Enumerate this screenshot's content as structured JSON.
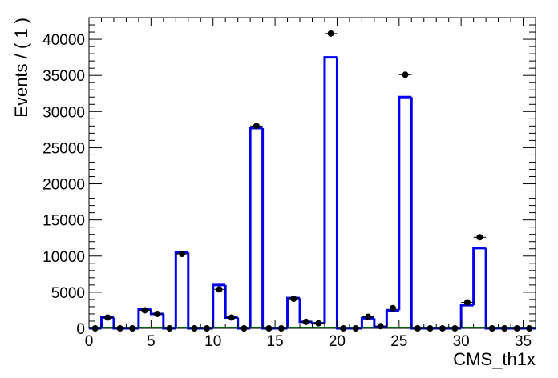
{
  "chart_data": {
    "type": "histogram",
    "xlabel": "CMS_th1x",
    "ylabel": "Events / ( 1 )",
    "xlim": [
      0,
      36
    ],
    "ylim": [
      0,
      43000
    ],
    "x_ticks": [
      0,
      5,
      10,
      15,
      20,
      25,
      30,
      35
    ],
    "y_ticks": [
      0,
      5000,
      10000,
      15000,
      20000,
      25000,
      30000,
      35000,
      40000
    ],
    "bin_width": 1,
    "model_line_color": "#0000ee",
    "background_line_color": "#006400",
    "data_point_color": "#000000",
    "model_values": [
      0,
      1500,
      0,
      0,
      2700,
      2000,
      0,
      10500,
      0,
      0,
      6000,
      1500,
      0,
      27700,
      0,
      0,
      4200,
      900,
      700,
      37500,
      0,
      0,
      1400,
      200,
      2500,
      32000,
      0,
      0,
      0,
      0,
      3200,
      11100,
      0,
      0,
      0,
      0
    ],
    "data_values": [
      0,
      1500,
      0,
      0,
      2500,
      2000,
      0,
      10300,
      0,
      0,
      5400,
      1500,
      0,
      28000,
      0,
      0,
      4100,
      900,
      700,
      40800,
      0,
      0,
      1600,
      300,
      2800,
      35100,
      0,
      0,
      0,
      0,
      3600,
      12600,
      0,
      0,
      0,
      0
    ]
  }
}
